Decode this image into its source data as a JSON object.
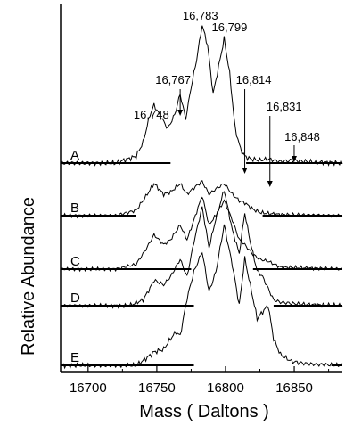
{
  "chart_data": {
    "type": "line",
    "title": "",
    "xlabel": "Mass ( Daltons )",
    "ylabel": "Relative Abundance",
    "xlim": [
      16680,
      16885
    ],
    "x_ticks": [
      16700,
      16750,
      16800,
      16850
    ],
    "x_tick_labels": [
      "16700",
      "16750",
      "16800",
      "16850"
    ],
    "grid": false,
    "legend": "none",
    "line_color": "#000000",
    "peak_annotations": [
      {
        "label": "16,748",
        "mass": 16748,
        "arrow": false
      },
      {
        "label": "16,767",
        "mass": 16767,
        "arrow": true
      },
      {
        "label": "16,783",
        "mass": 16783,
        "arrow": false
      },
      {
        "label": "16,799",
        "mass": 16799,
        "arrow": false
      },
      {
        "label": "16,814",
        "mass": 16814,
        "arrow": true
      },
      {
        "label": "16,831",
        "mass": 16831,
        "arrow": true
      },
      {
        "label": "16,848",
        "mass": 16848,
        "arrow": true
      }
    ],
    "series": [
      {
        "name": "A",
        "x": [
          16680,
          16700,
          16720,
          16735,
          16740,
          16745,
          16748,
          16752,
          16758,
          16763,
          16767,
          16771,
          16775,
          16779,
          16783,
          16787,
          16791,
          16795,
          16799,
          16803,
          16807,
          16811,
          16814,
          16818,
          16825,
          16831,
          16840,
          16848,
          16860,
          16885
        ],
        "y": [
          0,
          0,
          0,
          0.05,
          0.15,
          0.35,
          0.42,
          0.35,
          0.25,
          0.35,
          0.5,
          0.32,
          0.55,
          0.75,
          1.0,
          0.85,
          0.5,
          0.7,
          0.9,
          0.65,
          0.25,
          0.1,
          0.05,
          0.03,
          0.02,
          0.03,
          0.01,
          0.02,
          0.01,
          0
        ]
      },
      {
        "name": "B",
        "x": [
          16680,
          16720,
          16735,
          16742,
          16748,
          16755,
          16760,
          16767,
          16772,
          16777,
          16783,
          16788,
          16793,
          16799,
          16805,
          16810,
          16814,
          16820,
          16825,
          16831,
          16840,
          16885
        ],
        "y": [
          0,
          0,
          0.05,
          0.18,
          0.3,
          0.2,
          0.22,
          0.3,
          0.2,
          0.26,
          0.32,
          0.2,
          0.25,
          0.3,
          0.2,
          0.14,
          0.12,
          0.06,
          0.03,
          0.02,
          0.01,
          0
        ]
      },
      {
        "name": "C",
        "x": [
          16680,
          16720,
          16735,
          16742,
          16748,
          16755,
          16760,
          16767,
          16772,
          16777,
          16783,
          16788,
          16793,
          16799,
          16805,
          16810,
          16814,
          16820,
          16825,
          16831,
          16840,
          16885
        ],
        "y": [
          0,
          0,
          0.05,
          0.2,
          0.35,
          0.25,
          0.3,
          0.45,
          0.3,
          0.5,
          0.75,
          0.45,
          0.55,
          0.7,
          0.5,
          0.3,
          0.25,
          0.15,
          0.1,
          0.08,
          0.02,
          0
        ]
      },
      {
        "name": "D",
        "x": [
          16680,
          16730,
          16740,
          16745,
          16748,
          16755,
          16760,
          16767,
          16772,
          16777,
          16783,
          16788,
          16793,
          16799,
          16805,
          16810,
          16814,
          16818,
          16823,
          16827,
          16831,
          16835,
          16840,
          16848,
          16860,
          16885
        ],
        "y": [
          0,
          0,
          0.05,
          0.15,
          0.22,
          0.18,
          0.25,
          0.4,
          0.25,
          0.55,
          0.85,
          0.5,
          0.75,
          1.0,
          0.65,
          0.45,
          0.8,
          0.55,
          0.3,
          0.25,
          0.15,
          0.05,
          0.03,
          0.02,
          0.01,
          0
        ]
      },
      {
        "name": "E",
        "x": [
          16680,
          16735,
          16742,
          16748,
          16755,
          16760,
          16764,
          16767,
          16772,
          16777,
          16783,
          16788,
          16793,
          16799,
          16805,
          16810,
          16814,
          16818,
          16823,
          16827,
          16831,
          16835,
          16840,
          16848,
          16860,
          16885
        ],
        "y": [
          0,
          0,
          0.05,
          0.1,
          0.12,
          0.2,
          0.25,
          0.22,
          0.5,
          0.7,
          0.85,
          0.55,
          0.7,
          1.05,
          0.75,
          0.45,
          0.8,
          0.6,
          0.35,
          0.4,
          0.45,
          0.2,
          0.08,
          0.03,
          0.01,
          0
        ]
      }
    ]
  }
}
